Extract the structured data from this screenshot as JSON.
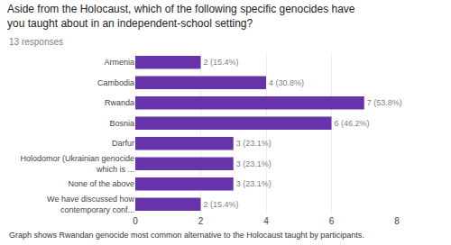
{
  "chart_data": {
    "type": "bar",
    "orientation": "horizontal",
    "title": "Aside from the Holocaust, which of the following specific genocides have\nyou taught about in an independent-school setting?",
    "subtitle": "13 responses",
    "annotations": [
      "Graph shows Rwandan genocide most common alternative to the Holocaust taught by participants."
    ],
    "categories": [
      "Armenia",
      "Cambodia",
      "Rwanda",
      "Bosnia",
      "Darfur",
      "Holodomor (Ukrainian genocide\nwhich is ...",
      "None of the above",
      "We have discussed how\ncontemporary conf..."
    ],
    "values": [
      2,
      4,
      7,
      6,
      3,
      3,
      3,
      2
    ],
    "value_labels": [
      "2 (15.4%)",
      "4 (30.8%)",
      "7 (53.8%)",
      "6 (46.2%)",
      "3 (23.1%)",
      "3 (23.1%)",
      "3 (23.1%)",
      "2 (15.4%)"
    ],
    "data_labels": true,
    "color": "#6633aa",
    "xlim": [
      0,
      8
    ],
    "xticks": [
      0,
      2,
      4,
      6,
      8
    ],
    "grid": true
  }
}
